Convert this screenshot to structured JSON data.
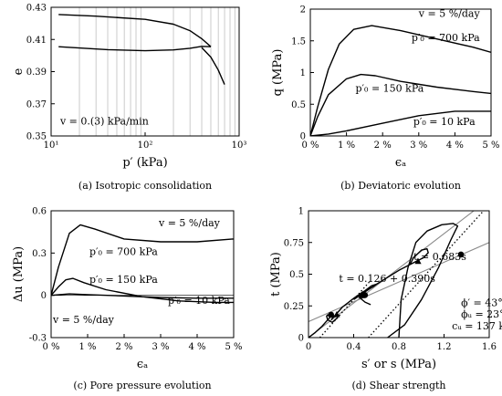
{
  "chart_data": [
    {
      "type": "line",
      "caption": "(a) Isotropic consolidation",
      "xlabel": "p′ (kPa)",
      "ylabel": "e",
      "xscale": "log",
      "xlim": [
        10,
        1000
      ],
      "ylim": [
        0.35,
        0.43
      ],
      "xticks": [
        10,
        100,
        1000
      ],
      "xtick_labels": [
        "10¹",
        "10²",
        "10³"
      ],
      "yticks": [
        0.35,
        0.37,
        0.39,
        0.41,
        0.43
      ],
      "ytick_labels": [
        "0.35",
        "0.37",
        "0.39",
        "0.41",
        "0.43"
      ],
      "grid": "vertical log grid",
      "annotations": [
        {
          "text": "v = 0.(3) kPa/min",
          "x": 12.5,
          "y": 0.357
        }
      ],
      "series": [
        {
          "x": [
            12,
            30,
            100,
            200,
            300,
            400,
            500
          ],
          "y": [
            0.4255,
            0.4245,
            0.4225,
            0.4195,
            0.4155,
            0.4105,
            0.4055
          ]
        },
        {
          "x": [
            12,
            40,
            100,
            200,
            300,
            400,
            500
          ],
          "y": [
            0.4055,
            0.4037,
            0.403,
            0.4035,
            0.4045,
            0.4057,
            0.4055
          ]
        },
        {
          "x": [
            400,
            500,
            600,
            700
          ],
          "y": [
            0.405,
            0.399,
            0.391,
            0.382
          ]
        }
      ]
    },
    {
      "type": "line",
      "caption": "(b) Deviatoric evolution",
      "xlabel": "ϵₐ",
      "ylabel": "q (MPa)",
      "xlim": [
        0,
        5
      ],
      "ylim": [
        0,
        2
      ],
      "xticks": [
        0,
        1,
        2,
        3,
        4,
        5
      ],
      "xtick_labels": [
        "0 %",
        "1 %",
        "2 %",
        "3 %",
        "4 %",
        "5 %"
      ],
      "yticks": [
        0,
        0.5,
        1,
        1.5,
        2
      ],
      "ytick_labels": [
        "0",
        "0.5",
        "1",
        "1.5",
        "2"
      ],
      "annotations": [
        {
          "text": "v = 5 %/day",
          "x": 3.0,
          "y": 1.88
        },
        {
          "text": "p′₀ = 700 kPa",
          "x": 2.8,
          "y": 1.5
        },
        {
          "text": "p′₀ = 150 kPa",
          "x": 1.25,
          "y": 0.7
        },
        {
          "text": "p′₀ = 10 kPa",
          "x": 2.85,
          "y": 0.17
        }
      ],
      "series": [
        {
          "name": "p′₀ = 700 kPa",
          "x": [
            0,
            0.2,
            0.5,
            0.8,
            1.2,
            1.7,
            2.5,
            3.5,
            4.5,
            5
          ],
          "y": [
            0,
            0.45,
            1.05,
            1.45,
            1.68,
            1.74,
            1.66,
            1.53,
            1.4,
            1.32
          ]
        },
        {
          "name": "p′₀ = 150 kPa",
          "x": [
            0,
            0.2,
            0.5,
            1,
            1.4,
            1.8,
            2.5,
            3.5,
            4.5,
            5
          ],
          "y": [
            0,
            0.3,
            0.65,
            0.9,
            0.97,
            0.95,
            0.86,
            0.77,
            0.7,
            0.67
          ]
        },
        {
          "name": "p′₀ = 10 kPa",
          "x": [
            0,
            0.5,
            1,
            2,
            3,
            4,
            5
          ],
          "y": [
            0,
            0.03,
            0.08,
            0.2,
            0.32,
            0.39,
            0.39
          ]
        }
      ]
    },
    {
      "type": "line",
      "caption": "(c) Pore pressure evolution",
      "xlabel": "ϵₐ",
      "ylabel": "Δu (MPa)",
      "xlim": [
        0,
        5
      ],
      "ylim": [
        -0.3,
        0.6
      ],
      "xticks": [
        0,
        1,
        2,
        3,
        4,
        5
      ],
      "xtick_labels": [
        "0 %",
        "1 %",
        "2 %",
        "3 %",
        "4 %",
        "5 %"
      ],
      "yticks": [
        -0.3,
        0,
        0.3,
        0.6
      ],
      "ytick_labels": [
        "-0.3",
        "0",
        "0.3",
        "0.6"
      ],
      "annotations": [
        {
          "text": "v = 5 %/day",
          "x": 2.95,
          "y": 0.49
        },
        {
          "text": "p′₀ = 700 kPa",
          "x": 1.05,
          "y": 0.285
        },
        {
          "text": "p′₀ = 150 kPa",
          "x": 1.05,
          "y": 0.09
        },
        {
          "text": "p′₀ = 10 kPa",
          "x": 3.2,
          "y": -0.06
        },
        {
          "text": "v = 5 %/day",
          "x": 0.05,
          "y": -0.195
        }
      ],
      "series": [
        {
          "name": "p′₀ = 700 kPa",
          "x": [
            0,
            0.2,
            0.5,
            0.8,
            1.2,
            2,
            3,
            4,
            5
          ],
          "y": [
            0,
            0.2,
            0.44,
            0.5,
            0.47,
            0.4,
            0.38,
            0.38,
            0.4
          ]
        },
        {
          "name": "p′₀ = 150 kPa",
          "x": [
            0,
            0.2,
            0.4,
            0.6,
            0.9,
            1.5,
            2.5,
            3.5,
            4.5,
            5
          ],
          "y": [
            0,
            0.06,
            0.11,
            0.12,
            0.09,
            0.04,
            -0.01,
            -0.04,
            -0.05,
            -0.05
          ]
        },
        {
          "name": "p′₀ = 10 kPa",
          "x": [
            0,
            0.5,
            1,
            2,
            3,
            4,
            5
          ],
          "y": [
            0,
            0.01,
            0.005,
            -0.005,
            -0.015,
            -0.02,
            -0.02
          ]
        }
      ]
    },
    {
      "type": "line",
      "caption": "(d) Shear strength",
      "xlabel": "s′ or s (MPa)",
      "ylabel": "t (MPa)",
      "xlim": [
        0,
        1.6
      ],
      "ylim": [
        0,
        1
      ],
      "xticks": [
        0,
        0.4,
        0.8,
        1.2,
        1.6
      ],
      "xtick_labels": [
        "0",
        "0.4",
        "0.8",
        "1.2",
        "1.6"
      ],
      "yticks": [
        0,
        0.25,
        0.5,
        0.75,
        1
      ],
      "ytick_labels": [
        "0",
        "0.25",
        "0.5",
        "0.75",
        "1"
      ],
      "annotations": [
        {
          "text": "t = 0.683s",
          "x": 0.93,
          "y": 0.61
        },
        {
          "text": "t = 0.126 + 0.390s",
          "x": 0.27,
          "y": 0.44
        },
        {
          "text": "ϕ′ = 43°",
          "x": 1.35,
          "y": 0.25
        },
        {
          "text": "ϕᵤ = 23°",
          "x": 1.35,
          "y": 0.16
        },
        {
          "text": "cᵤ = 137 kPa",
          "x": 1.27,
          "y": 0.065
        }
      ],
      "reference_lines": [
        {
          "label": "t = 0.683s",
          "style": "solid gray",
          "x": [
            0,
            1.6
          ],
          "y": [
            0,
            1.093
          ]
        },
        {
          "label": "t = 0.126 + 0.390s",
          "style": "solid gray",
          "x": [
            0,
            1.6
          ],
          "y": [
            0.126,
            0.75
          ]
        }
      ],
      "dotted_lines": [
        {
          "x": [
            0.1,
            0.55
          ],
          "y": [
            0,
            0.45
          ]
        },
        {
          "x": [
            0.53,
            1.55
          ],
          "y": [
            0,
            1.0
          ]
        }
      ],
      "series": [
        {
          "x": [
            0,
            0.06,
            0.12,
            0.16,
            0.19,
            0.17,
            0.16,
            0.17,
            0.21,
            0.26
          ],
          "y": [
            0,
            0.04,
            0.09,
            0.13,
            0.16,
            0.18,
            0.17,
            0.14,
            0.12,
            0.16
          ]
        },
        {
          "x": [
            0.2,
            0.3,
            0.4,
            0.48,
            0.57,
            0.6,
            0.56,
            0.5,
            0.45,
            0.46,
            0.5,
            0.55
          ],
          "y": [
            0.14,
            0.24,
            0.31,
            0.36,
            0.4,
            0.42,
            0.41,
            0.37,
            0.33,
            0.31,
            0.28,
            0.26
          ]
        },
        {
          "x": [
            0.4,
            0.6,
            0.8,
            0.95,
            1.02,
            1.06,
            1.05,
            1.0,
            0.93,
            0.9
          ],
          "y": [
            0.3,
            0.42,
            0.53,
            0.6,
            0.63,
            0.67,
            0.7,
            0.69,
            0.63,
            0.58
          ]
        },
        {
          "x": [
            0.7,
            0.85,
            1.0,
            1.15,
            1.26,
            1.32,
            1.28,
            1.18,
            1.05,
            0.95,
            0.88,
            0.82,
            0.8
          ],
          "y": [
            0,
            0.1,
            0.3,
            0.55,
            0.77,
            0.88,
            0.9,
            0.89,
            0.84,
            0.75,
            0.55,
            0.3,
            0
          ]
        }
      ],
      "markers": [
        {
          "shape": "circle",
          "x": 0.2,
          "y": 0.18
        },
        {
          "shape": "triangle",
          "x": 0.25,
          "y": 0.18
        },
        {
          "shape": "circle",
          "x": 0.5,
          "y": 0.335
        },
        {
          "shape": "triangle",
          "x": 0.47,
          "y": 0.33
        },
        {
          "shape": "circle",
          "x": 1.35,
          "y": 0.655
        },
        {
          "shape": "triangle",
          "x": 0.97,
          "y": 0.6
        }
      ]
    }
  ]
}
